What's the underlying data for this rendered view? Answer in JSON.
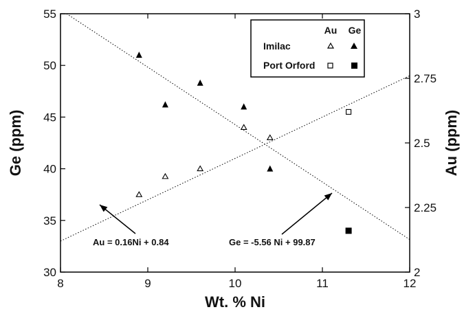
{
  "chart_data": {
    "type": "scatter",
    "xlabel": "Wt. % Ni",
    "ylabel": "Ge (ppm)",
    "y2label": "Au (ppm)",
    "xlim": [
      8,
      12
    ],
    "ylim": [
      30,
      55
    ],
    "y2lim": [
      2,
      3
    ],
    "x_ticks": [
      "8",
      "9",
      "10",
      "11",
      "12"
    ],
    "y_ticks": [
      "30",
      "35",
      "40",
      "45",
      "50",
      "55"
    ],
    "y2_ticks": [
      "2",
      "2.25",
      "2.5",
      "2.75",
      "3"
    ],
    "grid": false,
    "legend_placement": "top-right",
    "legend_headers": [
      "Au",
      "Ge"
    ],
    "legend_rows": [
      "Imilac",
      "Port Orford"
    ],
    "series": [
      {
        "name": "Imilac",
        "element": "Au",
        "axis": "right",
        "marker": "open-triangle",
        "x": [
          8.9,
          9.2,
          9.6,
          10.1,
          10.4
        ],
        "y": [
          2.3,
          2.37,
          2.4,
          2.56,
          2.52
        ]
      },
      {
        "name": "Imilac",
        "element": "Ge",
        "axis": "left",
        "marker": "filled-triangle",
        "x": [
          8.9,
          9.2,
          9.6,
          10.1,
          10.4
        ],
        "y": [
          51.0,
          46.2,
          48.3,
          46.0,
          40.0
        ]
      },
      {
        "name": "Port Orford",
        "element": "Au",
        "axis": "right",
        "marker": "open-square",
        "x": [
          11.3
        ],
        "y": [
          2.62
        ]
      },
      {
        "name": "Port Orford",
        "element": "Ge",
        "axis": "left",
        "marker": "filled-square",
        "x": [
          11.3
        ],
        "y": [
          34.0
        ]
      }
    ],
    "fit_lines": [
      {
        "axis": "right",
        "slope": 0.16,
        "intercept": 0.84
      },
      {
        "axis": "left",
        "slope": -5.56,
        "intercept": 99.87
      }
    ],
    "annotations": [
      {
        "text": "Au = 0.16Ni + 0.84",
        "x": 8.85,
        "y": 33.0
      },
      {
        "text": "Ge = -5.56 Ni + 99.87",
        "x": 10.7,
        "y": 33.0
      }
    ]
  }
}
